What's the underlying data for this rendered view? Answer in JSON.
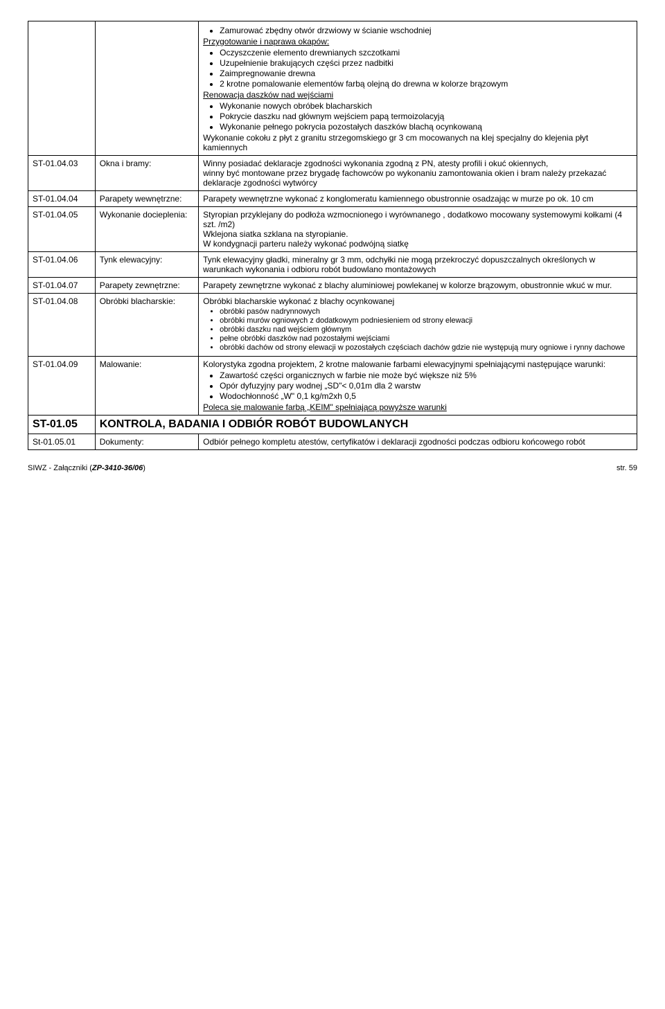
{
  "rows": [
    {
      "id": "",
      "label": "",
      "content": {
        "sections": [
          {
            "type": "ul",
            "items": [
              "Zamurować zbędny otwór drzwiowy w ścianie wschodniej"
            ]
          },
          {
            "type": "heading_underline",
            "text": "Przygotowanie i naprawa okapów:"
          },
          {
            "type": "ul",
            "items": [
              "Oczyszczenie elemento drewnianych szczotkami",
              "Uzupełnienie brakujących części przez nadbitki",
              "Zaimpregnowanie drewna",
              "2 krotne pomalowanie elementów farbą olejną do drewna w kolorze brązowym"
            ]
          },
          {
            "type": "heading_underline",
            "text": "Renowacja daszków nad wejściami"
          },
          {
            "type": "ul",
            "items": [
              "Wykonanie nowych obróbek blacharskich",
              "Pokrycie daszku nad głównym wejściem papą termoizolacyją",
              "Wykonanie pełnego pokrycia pozostałych daszków blachą ocynkowaną"
            ]
          },
          {
            "type": "para",
            "text": "Wykonanie cokołu z płyt z granitu strzegomskiego gr 3 cm mocowanych na klej specjalny do klejenia płyt kamiennych"
          }
        ]
      }
    },
    {
      "id": "ST-01.04.03",
      "label": "Okna i bramy:",
      "content": {
        "sections": [
          {
            "type": "para",
            "text": "Winny posiadać deklaracje zgodności wykonania zgodną z PN, atesty profili i okuć okiennych,"
          },
          {
            "type": "para",
            "text": "winny być montowane przez brygadę fachowców po wykonaniu zamontowania okien i bram należy  przekazać deklaracje zgodności wytwórcy"
          }
        ]
      }
    },
    {
      "id": "ST-01.04.04",
      "label": "Parapety wewnętrzne:",
      "content": {
        "sections": [
          {
            "type": "para",
            "text": "Parapety wewnętrzne wykonać  z konglomeratu kamiennego obustronnie osadzając w murze po ok. 10 cm"
          }
        ]
      }
    },
    {
      "id": "ST-01.04.05",
      "label": "Wykonanie docieplenia:",
      "content": {
        "sections": [
          {
            "type": "para",
            "text": "Styropian przyklejany do podłoża wzmocnionego i wyrównanego , dodatkowo mocowany systemowymi  kołkami (4 szt. /m2)"
          },
          {
            "type": "para",
            "text": "Wklejona siatka szklana na styropianie."
          },
          {
            "type": "para",
            "text": "W kondygnacji parteru należy wykonać podwójną siatkę"
          }
        ]
      }
    },
    {
      "id": "ST-01.04.06",
      "label": "Tynk elewacyjny:",
      "content": {
        "sections": [
          {
            "type": "para",
            "text": "Tynk elewacyjny gładki, mineralny gr 3 mm, odchyłki nie mogą przekroczyć dopuszczalnych określonych w warunkach wykonania i odbioru robót budowlano montażowych"
          }
        ]
      }
    },
    {
      "id": "ST-01.04.07",
      "label": "Parapety zewnętrzne:",
      "content": {
        "sections": [
          {
            "type": "para",
            "text": "Parapety zewnętrzne wykonać z blachy aluminiowej powlekanej w kolorze brązowym, obustronnie wkuć w mur."
          }
        ]
      }
    },
    {
      "id": "ST-01.04.08",
      "label": "Obróbki blacharskie:",
      "content": {
        "sections": [
          {
            "type": "para",
            "text": "Obróbki blacharskie wykonać z blachy ocynkowanej"
          },
          {
            "type": "ul_small",
            "items": [
              "obróbki pasów nadrynnowych",
              "obróbki murów ogniowych z dodatkowym podniesieniem od strony elewacji",
              "obróbki daszku nad wejściem głównym",
              "pełne obróbki daszków nad pozostałymi wejściami",
              "obróbki dachów od strony elewacji w pozostałych częściach dachów gdzie nie występują mury ogniowe i rynny dachowe"
            ]
          }
        ]
      }
    },
    {
      "id": "ST-01.04.09",
      "label": "Malowanie:",
      "content": {
        "sections": [
          {
            "type": "para",
            "text": "Kolorystyka zgodna projektem, 2 krotne malowanie farbami elewacyjnymi spełniającymi następujące warunki:"
          },
          {
            "type": "ul_large",
            "items": [
              "Zawartość części organicznych w farbie nie może być większe niż 5%",
              "Opór dyfuzyjny pary wodnej „SD\"< 0,01m dla 2 warstw",
              "Wodochłonność „W\" 0,1 kg/m2xh 0,5"
            ]
          },
          {
            "type": "para_underline",
            "text": "Poleca się malowanie farbą „KEIM\" spełniającą powyższe warunki"
          }
        ]
      }
    },
    {
      "id": "ST-01.05",
      "label": "KONTROLA, BADANIA I ODBIÓR ROBÓT BUDOWLANYCH",
      "is_section": true
    },
    {
      "id": "St-01.05.01",
      "label": "Dokumenty:",
      "content": {
        "sections": [
          {
            "type": "para",
            "text": "Odbiór pełnego kompletu  atestów, certyfikatów i deklaracji zgodności podczas  odbioru końcowego robót"
          }
        ]
      }
    }
  ],
  "footer": {
    "left_prefix": "SIWZ - Załączniki (",
    "left_bold": "ZP-3410-36/06",
    "left_suffix": ")",
    "right": "str. 59"
  }
}
